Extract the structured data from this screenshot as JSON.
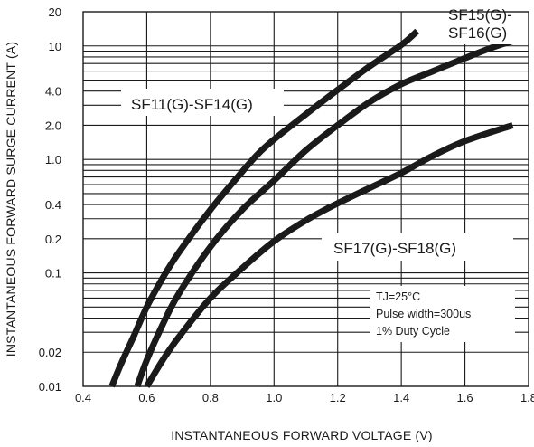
{
  "chart_data": {
    "type": "line",
    "xlabel": "INSTANTANEOUS FORWARD VOLTAGE (V)",
    "ylabel": "INSTANTANEOUS FORWARD SURGE CURRENT (A)",
    "xlim": [
      0.4,
      1.8
    ],
    "ylim": [
      0.01,
      20
    ],
    "yscale": "log",
    "grid": true,
    "x_ticks": [
      0.4,
      0.6,
      0.8,
      1.0,
      1.2,
      1.4,
      1.6,
      1.8
    ],
    "x_tick_labels": [
      "0.4",
      "0.6",
      "0.8",
      "1.0",
      "1.2",
      "1.4",
      "1.6",
      "1.8"
    ],
    "y_ticks": [
      0.01,
      0.02,
      0.04,
      0.1,
      0.2,
      0.4,
      1.0,
      2.0,
      4.0,
      10,
      20
    ],
    "y_tick_labels": [
      "0.01",
      "0.02",
      "",
      "0.1",
      "0.2",
      "0.4",
      "1.0",
      "2.0",
      "4.0",
      "10",
      "20"
    ],
    "series": [
      {
        "name": "SF11(G)-SF14(G)",
        "x": [
          0.49,
          0.52,
          0.56,
          0.6,
          0.65,
          0.7,
          0.8,
          0.9,
          0.95,
          1.0,
          1.1,
          1.2,
          1.3,
          1.4,
          1.45
        ],
        "y": [
          0.01,
          0.016,
          0.028,
          0.05,
          0.09,
          0.15,
          0.36,
          0.78,
          1.12,
          1.5,
          2.5,
          4.1,
          6.6,
          10.2,
          13.5
        ]
      },
      {
        "name": "SF15(G)-SF16(G)",
        "x": [
          0.57,
          0.6,
          0.65,
          0.7,
          0.8,
          0.9,
          1.0,
          1.1,
          1.2,
          1.3,
          1.4,
          1.5,
          1.6,
          1.7,
          1.8
        ],
        "y": [
          0.01,
          0.017,
          0.035,
          0.065,
          0.17,
          0.36,
          0.65,
          1.2,
          2.0,
          3.2,
          4.6,
          6.0,
          7.8,
          10.0,
          12.0
        ]
      },
      {
        "name": "SF17(G)-SF18(G)",
        "x": [
          0.6,
          0.65,
          0.7,
          0.8,
          0.9,
          1.0,
          1.1,
          1.2,
          1.3,
          1.4,
          1.5,
          1.6,
          1.75
        ],
        "y": [
          0.01,
          0.017,
          0.027,
          0.06,
          0.11,
          0.19,
          0.29,
          0.41,
          0.56,
          0.76,
          1.08,
          1.45,
          2.0
        ]
      }
    ],
    "annotations": [
      "TJ=25°C",
      "Pulse width=300us",
      "1% Duty Cycle"
    ]
  }
}
